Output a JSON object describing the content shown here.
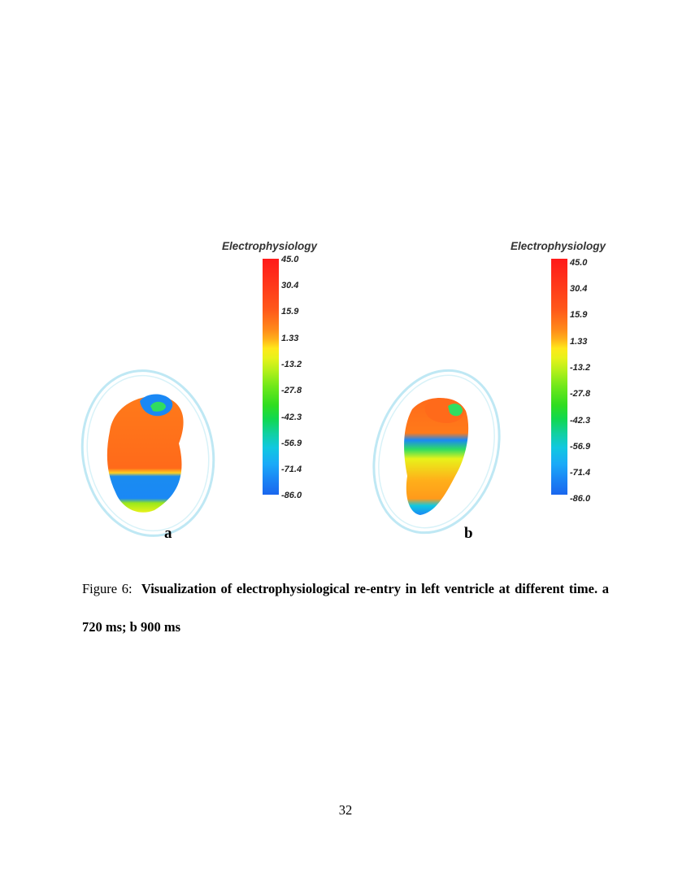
{
  "panels": [
    {
      "letter": "a",
      "legend": {
        "title": "Electrophysiology",
        "ticks": [
          "45.0",
          "30.4",
          "15.9",
          "1.33",
          "-13.2",
          "-27.8",
          "-42.3",
          "-56.9",
          "-71.4",
          "-86.0"
        ]
      }
    },
    {
      "letter": "b",
      "legend": {
        "title": "Electrophysiology",
        "ticks": [
          "45.0",
          "30.4",
          "15.9",
          "1.33",
          "-13.2",
          "-27.8",
          "-42.3",
          "-56.9",
          "-71.4",
          "-86.0"
        ]
      }
    }
  ],
  "colors": {
    "max": "#ff1a1a",
    "mid": "#ffe81a",
    "green": "#30dd20",
    "cyan": "#10c8e0",
    "min": "#1a66ee"
  },
  "caption": {
    "prefix": "Figure 6:",
    "title": "Visualization of electrophysiological re-entry in left ventricle at different time. a 720 ms; b 900 ms"
  },
  "page_number": "32"
}
